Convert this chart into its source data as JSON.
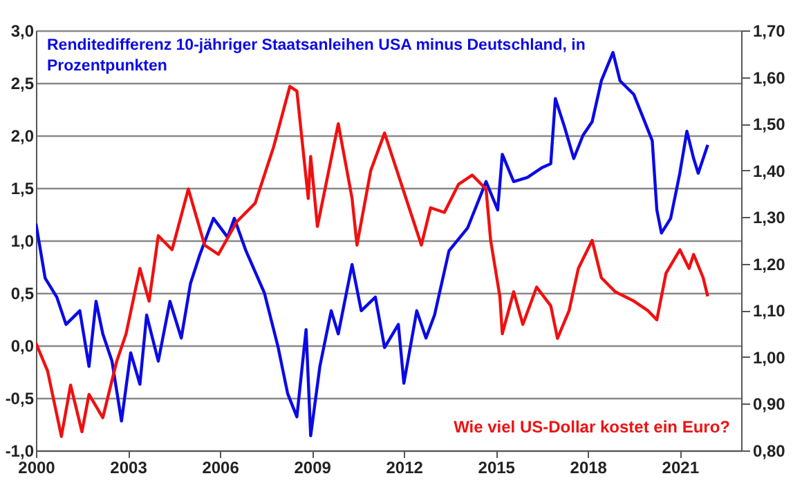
{
  "chart_data": {
    "type": "line",
    "xlim": [
      2000,
      2023
    ],
    "xticks": [
      2000,
      2003,
      2006,
      2009,
      2012,
      2015,
      2018,
      2021
    ],
    "ylim": [
      -1,
      3
    ],
    "yticks": [
      {
        "value": -1,
        "label": "-1,0"
      },
      {
        "value": -0.5,
        "label": "-0,5"
      },
      {
        "value": 0,
        "label": "0,0"
      },
      {
        "value": 0.5,
        "label": "0,5"
      },
      {
        "value": 1,
        "label": "1,0"
      },
      {
        "value": 1.5,
        "label": "1,5"
      },
      {
        "value": 2,
        "label": "2,0"
      },
      {
        "value": 2.5,
        "label": "2,5"
      },
      {
        "value": 3,
        "label": "3,0"
      }
    ],
    "y2lim": [
      0.8,
      1.7
    ],
    "y2ticks": [
      {
        "value": 0.8,
        "label": "0,80"
      },
      {
        "value": 0.9,
        "label": "0,90"
      },
      {
        "value": 1.0,
        "label": "1,00"
      },
      {
        "value": 1.1,
        "label": "1,10"
      },
      {
        "value": 1.2,
        "label": "1,20"
      },
      {
        "value": 1.3,
        "label": "1,30"
      },
      {
        "value": 1.4,
        "label": "1,40"
      },
      {
        "value": 1.5,
        "label": "1,50"
      },
      {
        "value": 1.6,
        "label": "1,60"
      },
      {
        "value": 1.7,
        "label": "1,70"
      }
    ],
    "grid": "y",
    "legend": false,
    "marker": "none",
    "line_style": "solid",
    "series": [
      {
        "name": "Renditedifferenz 10-jähriger Staatsanleihen USA minus Deutschland, in Prozentpunkten",
        "color": "#0a0ae6",
        "x": [
          2000.0,
          2000.3,
          2000.68,
          2000.98,
          2001.43,
          2001.73,
          2001.96,
          2002.18,
          2002.48,
          2002.79,
          2003.09,
          2003.39,
          2003.61,
          2003.99,
          2004.37,
          2004.74,
          2005.04,
          2005.34,
          2005.79,
          2006.25,
          2006.47,
          2006.85,
          2007.45,
          2007.9,
          2008.21,
          2008.51,
          2008.81,
          2008.96,
          2009.26,
          2009.63,
          2009.86,
          2010.31,
          2010.61,
          2011.07,
          2011.37,
          2011.82,
          2012.0,
          2012.42,
          2012.72,
          2013.0,
          2013.47,
          2014.08,
          2014.68,
          2015.06,
          2015.21,
          2015.58,
          2016.03,
          2016.49,
          2016.79,
          2016.94,
          2017.24,
          2017.54,
          2017.84,
          2018.14,
          2018.44,
          2018.82,
          2019.05,
          2019.5,
          2019.8,
          2020.1,
          2020.25,
          2020.4,
          2020.7,
          2021.0,
          2021.23,
          2021.45,
          2021.6,
          2021.91
        ],
        "values": [
          1.16,
          0.64,
          0.46,
          0.2,
          0.33,
          -0.2,
          0.42,
          0.11,
          -0.15,
          -0.72,
          -0.07,
          -0.37,
          0.29,
          -0.15,
          0.42,
          0.07,
          0.59,
          0.86,
          1.21,
          1.03,
          1.21,
          0.9,
          0.5,
          -0.02,
          -0.46,
          -0.68,
          0.15,
          -0.86,
          -0.2,
          0.33,
          0.11,
          0.77,
          0.33,
          0.46,
          -0.02,
          0.2,
          -0.36,
          0.33,
          0.07,
          0.29,
          0.9,
          1.12,
          1.56,
          1.29,
          1.82,
          1.56,
          1.6,
          1.69,
          1.73,
          2.35,
          2.08,
          1.78,
          2.0,
          2.13,
          2.52,
          2.79,
          2.52,
          2.39,
          2.17,
          1.95,
          1.29,
          1.07,
          1.21,
          1.64,
          2.04,
          1.78,
          1.64,
          1.91
        ]
      },
      {
        "name": "Wie viel US-Dollar kostet ein Euro?",
        "color": "#f01010",
        "axis": "y2",
        "x": [
          2000.0,
          2000.38,
          2000.83,
          2001.13,
          2001.5,
          2001.73,
          2002.18,
          2002.63,
          2002.94,
          2003.39,
          2003.69,
          2003.99,
          2004.44,
          2004.97,
          2005.5,
          2005.95,
          2006.55,
          2007.15,
          2007.75,
          2008.28,
          2008.51,
          2008.88,
          2008.96,
          2009.18,
          2009.86,
          2010.31,
          2010.47,
          2010.92,
          2011.37,
          2011.67,
          2012.12,
          2012.57,
          2012.87,
          2013.32,
          2013.78,
          2014.23,
          2014.68,
          2014.83,
          2015.13,
          2015.21,
          2015.58,
          2015.88,
          2016.33,
          2016.79,
          2017.01,
          2017.39,
          2017.69,
          2018.14,
          2018.44,
          2018.89,
          2019.5,
          2019.95,
          2020.25,
          2020.55,
          2021.0,
          2021.3,
          2021.45,
          2021.76,
          2021.91
        ],
        "values": [
          1.03,
          0.97,
          0.83,
          0.94,
          0.84,
          0.92,
          0.87,
          0.99,
          1.05,
          1.19,
          1.12,
          1.26,
          1.23,
          1.36,
          1.24,
          1.22,
          1.29,
          1.33,
          1.45,
          1.58,
          1.57,
          1.34,
          1.43,
          1.28,
          1.5,
          1.34,
          1.24,
          1.4,
          1.48,
          1.42,
          1.33,
          1.24,
          1.32,
          1.31,
          1.37,
          1.39,
          1.36,
          1.25,
          1.13,
          1.05,
          1.14,
          1.07,
          1.15,
          1.11,
          1.04,
          1.1,
          1.19,
          1.25,
          1.17,
          1.14,
          1.12,
          1.1,
          1.08,
          1.18,
          1.23,
          1.19,
          1.22,
          1.17,
          1.13
        ]
      }
    ]
  }
}
